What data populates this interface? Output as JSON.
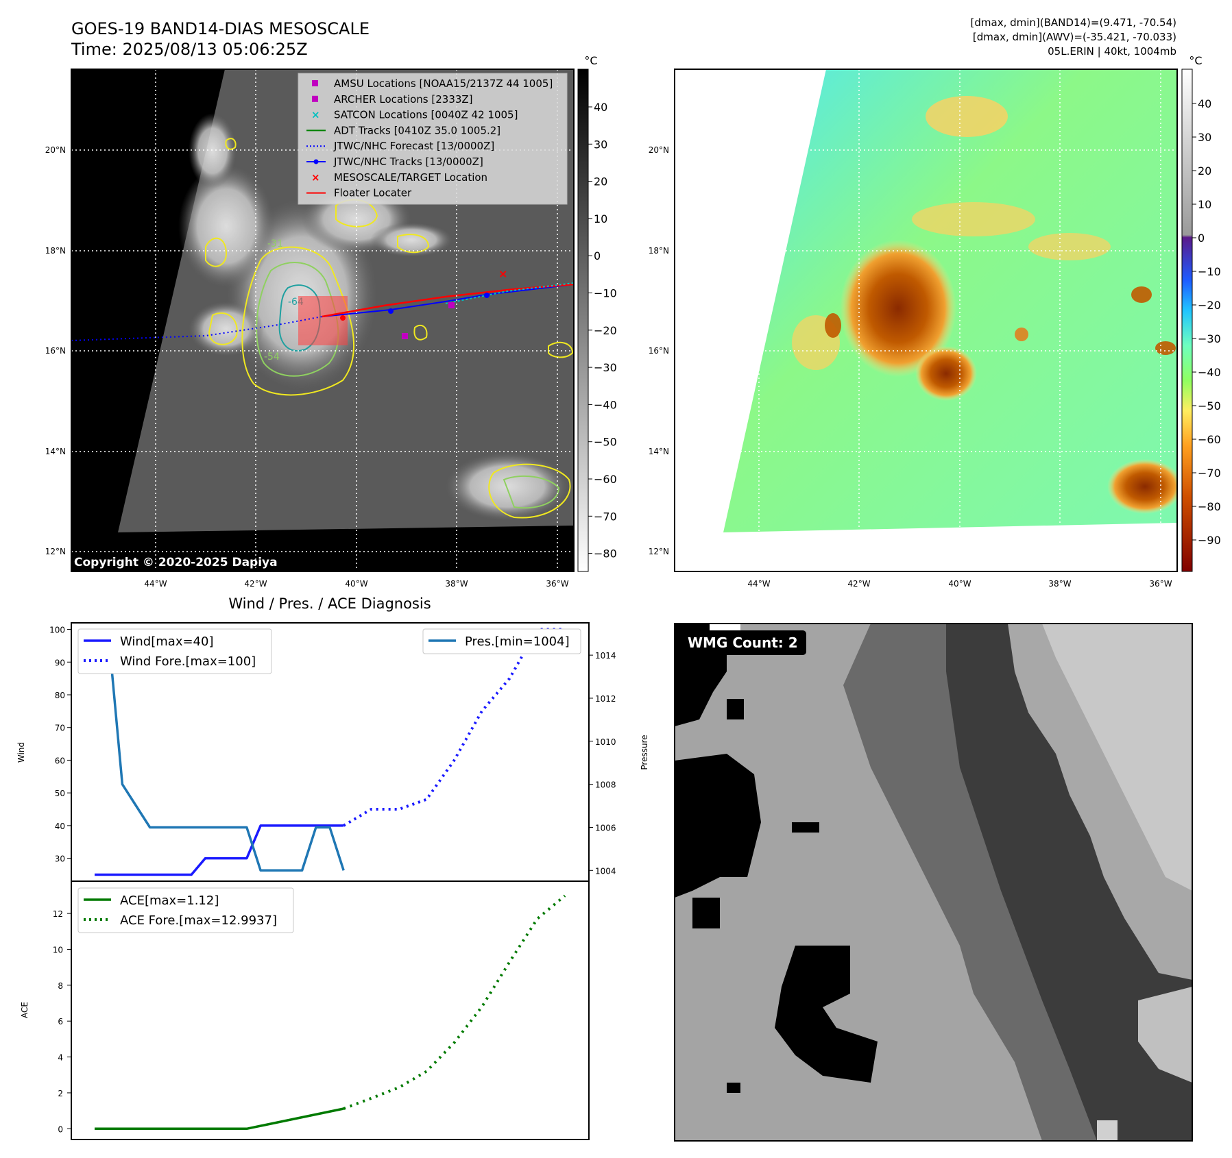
{
  "header": {
    "title_line1": "GOES-19 BAND14-DIAS MESOSCALE",
    "title_line2": "Time: 2025/08/13 05:06:25Z",
    "info_line1": "[dmax, dmin](BAND14)=(9.471, -70.54)",
    "info_line2": "[dmax, dmin](AWV)=(-35.421, -70.033)",
    "info_line3": "05L.ERIN | 40kt, 1004mb"
  },
  "map": {
    "lat_labels": [
      "20°N",
      "18°N",
      "16°N",
      "14°N",
      "12°N"
    ],
    "lon_labels": [
      "44°W",
      "42°W",
      "40°W",
      "38°W",
      "36°W"
    ],
    "copyright": "Copyright © 2020-2025 Dapiya",
    "contour_labels": [
      "-31",
      "-54",
      "-64"
    ],
    "legend": [
      {
        "label": "AMSU Locations [NOAA15/2137Z 44 1005]",
        "color": "#c000c0",
        "marker": "square"
      },
      {
        "label": "ARCHER Locations [2333Z]",
        "color": "#c000c0",
        "marker": "square"
      },
      {
        "label": "SATCON Locations [0040Z 42 1005]",
        "color": "#00c0c0",
        "marker": "x"
      },
      {
        "label": "ADT Tracks [0410Z 35.0 1005.2]",
        "color": "#008000",
        "marker": "line"
      },
      {
        "label": "JTWC/NHC Forecast [13/0000Z]",
        "color": "#0000ff",
        "marker": "dotted"
      },
      {
        "label": "JTWC/NHC Tracks [13/0000Z]",
        "color": "#0000ff",
        "marker": "dotline"
      },
      {
        "label": "MESOSCALE/TARGET Location",
        "color": "#ff0000",
        "marker": "x"
      },
      {
        "label": "Floater Locater",
        "color": "#ff0000",
        "marker": "line"
      }
    ]
  },
  "colorbar_gray": {
    "unit": "°C",
    "ticks": [
      "40",
      "30",
      "20",
      "10",
      "0",
      "−10",
      "−20",
      "−30",
      "−40",
      "−50",
      "−60",
      "−70",
      "−80"
    ]
  },
  "colorbar_color": {
    "unit": "°C",
    "ticks": [
      "40",
      "30",
      "20",
      "10",
      "0",
      "−10",
      "−20",
      "−30",
      "−40",
      "−50",
      "−60",
      "−70",
      "−80",
      "−90"
    ]
  },
  "diagnosis": {
    "title": "Wind / Pres. / ACE Diagnosis",
    "ylabel_wind": "Wind",
    "ylabel_pressure": "Pressure",
    "ylabel_ace": "ACE",
    "legend_wind": "Wind[max=40]",
    "legend_wind_fore": "Wind Fore.[max=100]",
    "legend_pres": "Pres.[min=1004]",
    "legend_ace": "ACE[max=1.12]",
    "legend_ace_fore": "ACE Fore.[max=12.9937]"
  },
  "wmg": {
    "label": "WMG Count: 2"
  },
  "chart_data": [
    {
      "type": "line",
      "title": "Wind / Pres. / ACE Diagnosis",
      "ylabel": "Wind",
      "ylim": [
        23,
        102
      ],
      "yticks": [
        30,
        40,
        50,
        60,
        70,
        80,
        90,
        100
      ],
      "series": [
        {
          "name": "Wind[max=40]",
          "x": [
            0,
            1,
            2,
            3,
            4,
            5,
            6,
            7,
            8,
            9,
            10,
            11,
            12,
            13,
            14,
            15,
            16,
            17,
            18
          ],
          "values": [
            25,
            25,
            25,
            25,
            25,
            25,
            25,
            25,
            30,
            30,
            30,
            30,
            40,
            40,
            40,
            40,
            40,
            40,
            40
          ]
        },
        {
          "name": "Wind Fore.[max=100]",
          "x": [
            18,
            20,
            22,
            24,
            26,
            28,
            30,
            32,
            34
          ],
          "values": [
            40,
            45,
            45,
            48,
            60,
            75,
            85,
            100,
            100
          ]
        }
      ]
    },
    {
      "type": "line",
      "ylabel": "Pressure",
      "ylim": [
        1003.5,
        1015.5
      ],
      "yticks": [
        1004,
        1006,
        1008,
        1010,
        1012,
        1014
      ],
      "series": [
        {
          "name": "Pres.[min=1004]",
          "x": [
            0,
            1,
            2,
            3,
            4,
            5,
            6,
            7,
            8,
            9,
            10,
            11,
            12,
            13,
            14,
            15,
            16,
            17,
            18
          ],
          "values": [
            1015,
            1015,
            1008,
            1007,
            1006,
            1006,
            1006,
            1006,
            1006,
            1006,
            1006,
            1006,
            1004,
            1004,
            1004,
            1004,
            1006,
            1006,
            1004
          ]
        }
      ]
    },
    {
      "type": "line",
      "ylabel": "ACE",
      "ylim": [
        -0.6,
        13.8
      ],
      "yticks": [
        0,
        2,
        4,
        6,
        8,
        10,
        12
      ],
      "series": [
        {
          "name": "ACE[max=1.12]",
          "x": [
            0,
            11,
            18
          ],
          "values": [
            0,
            0,
            1.12
          ]
        },
        {
          "name": "ACE Fore.[max=12.9937]",
          "x": [
            18,
            20,
            22,
            24,
            26,
            28,
            30,
            32,
            34
          ],
          "values": [
            1.12,
            1.7,
            2.3,
            3.2,
            4.8,
            6.8,
            9.3,
            11.7,
            12.99
          ]
        }
      ]
    }
  ]
}
